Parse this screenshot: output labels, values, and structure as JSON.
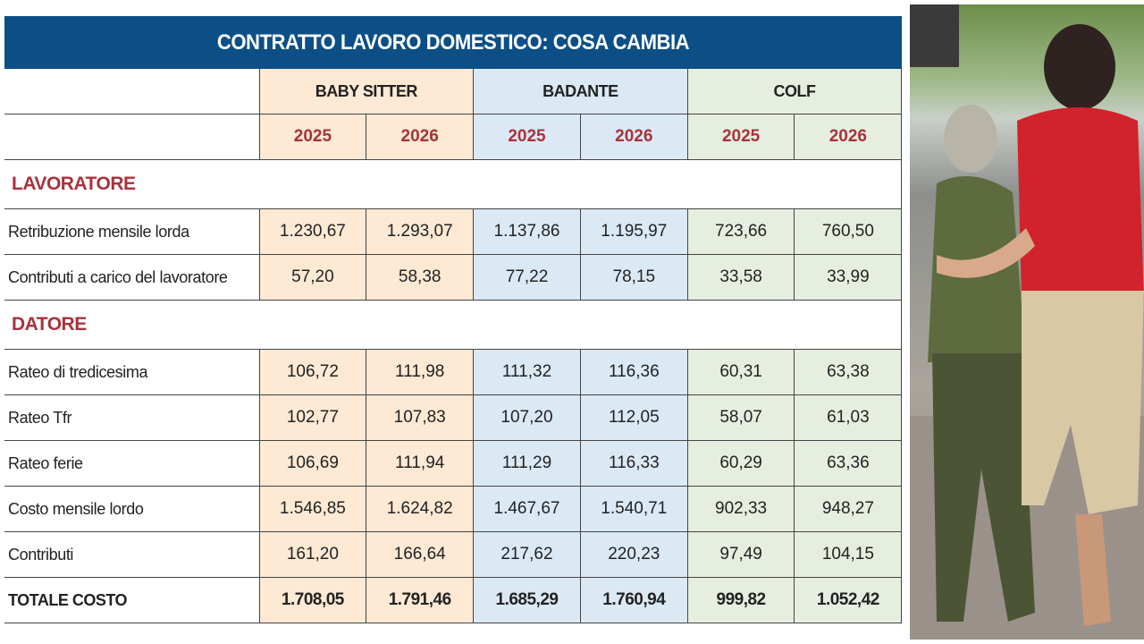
{
  "title": "CONTRATTO LAVORO DOMESTICO: COSA CAMBIA",
  "groups": [
    "BABY SITTER",
    "BADANTE",
    "COLF"
  ],
  "years": [
    "2025",
    "2026",
    "2025",
    "2026",
    "2025",
    "2026"
  ],
  "sections": {
    "lavoratore": {
      "label": "LAVORATORE",
      "rows": [
        {
          "label": "Retribuzione mensile lorda",
          "values": [
            "1.230,67",
            "1.293,07",
            "1.137,86",
            "1.195,97",
            "723,66",
            "760,50"
          ]
        },
        {
          "label": "Contributi a carico del lavoratore",
          "values": [
            "57,20",
            "58,38",
            "77,22",
            "78,15",
            "33,58",
            "33,99"
          ]
        }
      ]
    },
    "datore": {
      "label": "DATORE",
      "rows": [
        {
          "label": "Rateo di tredicesima",
          "values": [
            "106,72",
            "111,98",
            "111,32",
            "116,36",
            "60,31",
            "63,38"
          ]
        },
        {
          "label": "Rateo Tfr",
          "values": [
            "102,77",
            "107,83",
            "107,20",
            "112,05",
            "58,07",
            "61,03"
          ]
        },
        {
          "label": "Rateo ferie",
          "values": [
            "106,69",
            "111,94",
            "111,29",
            "116,33",
            "60,29",
            "63,36"
          ]
        },
        {
          "label": "Costo mensile lordo",
          "values": [
            "1.546,85",
            "1.624,82",
            "1.467,67",
            "1.540,71",
            "902,33",
            "948,27"
          ]
        },
        {
          "label": "Contributi",
          "values": [
            "161,20",
            "166,64",
            "217,62",
            "220,23",
            "97,49",
            "104,15"
          ]
        },
        {
          "label": "TOTALE COSTO",
          "values": [
            "1.708,05",
            "1.791,46",
            "1.685,29",
            "1.760,94",
            "999,82",
            "1.052,42"
          ]
        }
      ]
    }
  },
  "colors": {
    "title_bar": "#0c4f86",
    "baby_sitter": "#fde9d4",
    "badante": "#dbe9f5",
    "colf": "#e6eee0",
    "accent_red": "#a8323c"
  },
  "photo": {
    "subject": "two women walking arm in arm"
  }
}
